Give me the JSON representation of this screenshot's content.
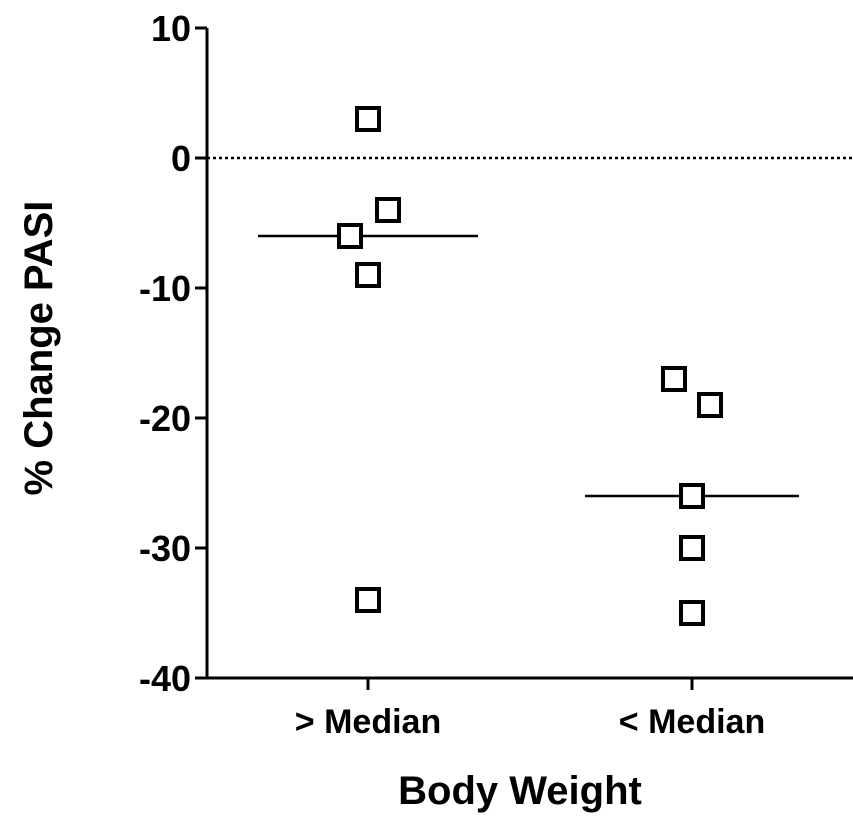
{
  "chart_data": {
    "type": "scatter",
    "xlabel": "Body Weight",
    "ylabel": "% Change PASI",
    "ylim": [
      -40,
      10
    ],
    "yticks": [
      10,
      0,
      -10,
      -20,
      -30,
      -40
    ],
    "categories": [
      "> Median",
      "< Median"
    ],
    "reference_line": {
      "y": 0,
      "style": "dotted"
    },
    "groups": [
      {
        "category": "> Median",
        "median": -6,
        "points": [
          3,
          -4,
          -6,
          -9,
          -34
        ]
      },
      {
        "category": "< Median",
        "median": -26,
        "points": [
          -17,
          -19,
          -26,
          -30,
          -35
        ]
      }
    ],
    "marker": "open-square",
    "grid": false
  }
}
